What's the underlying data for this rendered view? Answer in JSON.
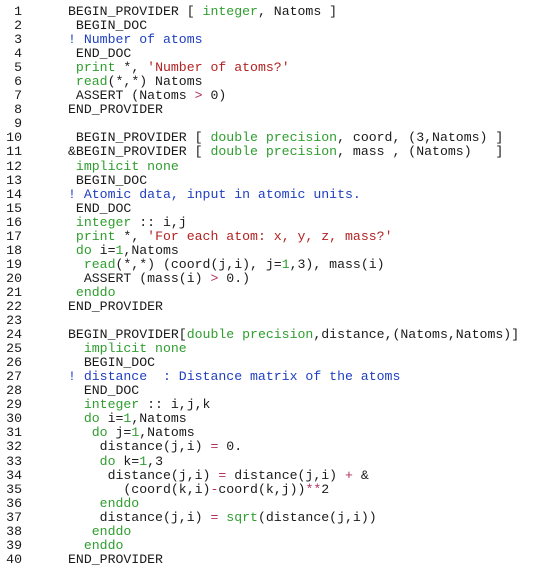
{
  "colors": {
    "keyword": "#2f9e2f",
    "string": "#b22222",
    "comment": "#1f3fbf",
    "operator": "#b03060",
    "text": "#1a1a1a",
    "background": "#ffffff"
  },
  "lines": [
    {
      "n": "1",
      "parts": [
        {
          "t": "BEGIN_PROVIDER [ ",
          "c": ""
        },
        {
          "t": "integer",
          "c": "kw"
        },
        {
          "t": ", Natoms ]",
          "c": ""
        }
      ]
    },
    {
      "n": "2",
      "parts": [
        {
          "t": " BEGIN_DOC",
          "c": ""
        }
      ]
    },
    {
      "n": "3",
      "parts": [
        {
          "t": "! Number of atoms",
          "c": "cmt"
        }
      ]
    },
    {
      "n": "4",
      "parts": [
        {
          "t": " END_DOC",
          "c": ""
        }
      ]
    },
    {
      "n": "5",
      "parts": [
        {
          "t": " ",
          "c": ""
        },
        {
          "t": "print",
          "c": "kw"
        },
        {
          "t": " *, ",
          "c": ""
        },
        {
          "t": "'Number of atoms?'",
          "c": "str"
        }
      ]
    },
    {
      "n": "6",
      "parts": [
        {
          "t": " ",
          "c": ""
        },
        {
          "t": "read",
          "c": "kw"
        },
        {
          "t": "(*,*) Natoms",
          "c": ""
        }
      ]
    },
    {
      "n": "7",
      "parts": [
        {
          "t": " ASSERT (Natoms ",
          "c": ""
        },
        {
          "t": ">",
          "c": "op"
        },
        {
          "t": " 0)",
          "c": ""
        }
      ]
    },
    {
      "n": "8",
      "parts": [
        {
          "t": "END_PROVIDER",
          "c": ""
        }
      ]
    },
    {
      "n": "9",
      "parts": [
        {
          "t": "",
          "c": ""
        }
      ]
    },
    {
      "n": "10",
      "parts": [
        {
          "t": " BEGIN_PROVIDER [ ",
          "c": ""
        },
        {
          "t": "double precision",
          "c": "kw"
        },
        {
          "t": ", coord, (3,Natoms) ]",
          "c": ""
        }
      ]
    },
    {
      "n": "11",
      "parts": [
        {
          "t": "&BEGIN_PROVIDER [ ",
          "c": ""
        },
        {
          "t": "double precision",
          "c": "kw"
        },
        {
          "t": ", mass , (Natoms)   ]",
          "c": ""
        }
      ]
    },
    {
      "n": "12",
      "parts": [
        {
          "t": " ",
          "c": ""
        },
        {
          "t": "implicit none",
          "c": "kw"
        }
      ]
    },
    {
      "n": "13",
      "parts": [
        {
          "t": " BEGIN_DOC",
          "c": ""
        }
      ]
    },
    {
      "n": "14",
      "parts": [
        {
          "t": "! Atomic data, input in atomic units.",
          "c": "cmt"
        }
      ]
    },
    {
      "n": "15",
      "parts": [
        {
          "t": " END_DOC",
          "c": ""
        }
      ]
    },
    {
      "n": "16",
      "parts": [
        {
          "t": " ",
          "c": ""
        },
        {
          "t": "integer",
          "c": "kw"
        },
        {
          "t": " :: i,j",
          "c": ""
        }
      ]
    },
    {
      "n": "17",
      "parts": [
        {
          "t": " ",
          "c": ""
        },
        {
          "t": "print",
          "c": "kw"
        },
        {
          "t": " *, ",
          "c": ""
        },
        {
          "t": "'For each atom: x, y, z, mass?'",
          "c": "str"
        }
      ]
    },
    {
      "n": "18",
      "parts": [
        {
          "t": " ",
          "c": ""
        },
        {
          "t": "do",
          "c": "kw"
        },
        {
          "t": " i=",
          "c": ""
        },
        {
          "t": "1",
          "c": "kw"
        },
        {
          "t": ",Natoms",
          "c": ""
        }
      ]
    },
    {
      "n": "19",
      "parts": [
        {
          "t": "  ",
          "c": ""
        },
        {
          "t": "read",
          "c": "kw"
        },
        {
          "t": "(*,*) (coord(j,i), j=",
          "c": ""
        },
        {
          "t": "1",
          "c": "kw"
        },
        {
          "t": ",3), mass(i)",
          "c": ""
        }
      ]
    },
    {
      "n": "20",
      "parts": [
        {
          "t": "  ASSERT (mass(i) ",
          "c": ""
        },
        {
          "t": ">",
          "c": "op"
        },
        {
          "t": " 0.)",
          "c": ""
        }
      ]
    },
    {
      "n": "21",
      "parts": [
        {
          "t": " ",
          "c": ""
        },
        {
          "t": "enddo",
          "c": "kw"
        }
      ]
    },
    {
      "n": "22",
      "parts": [
        {
          "t": "END_PROVIDER",
          "c": ""
        }
      ]
    },
    {
      "n": "23",
      "parts": [
        {
          "t": "",
          "c": ""
        }
      ]
    },
    {
      "n": "24",
      "parts": [
        {
          "t": "BEGIN_PROVIDER[",
          "c": ""
        },
        {
          "t": "double precision",
          "c": "kw"
        },
        {
          "t": ",distance,(Natoms,Natoms)]",
          "c": ""
        }
      ]
    },
    {
      "n": "25",
      "parts": [
        {
          "t": "  ",
          "c": ""
        },
        {
          "t": "implicit none",
          "c": "kw"
        }
      ]
    },
    {
      "n": "26",
      "parts": [
        {
          "t": "  BEGIN_DOC",
          "c": ""
        }
      ]
    },
    {
      "n": "27",
      "parts": [
        {
          "t": "! distance  : Distance matrix of the atoms",
          "c": "cmt"
        }
      ]
    },
    {
      "n": "28",
      "parts": [
        {
          "t": "  END_DOC",
          "c": ""
        }
      ]
    },
    {
      "n": "29",
      "parts": [
        {
          "t": "  ",
          "c": ""
        },
        {
          "t": "integer",
          "c": "kw"
        },
        {
          "t": " :: i,j,k",
          "c": ""
        }
      ]
    },
    {
      "n": "30",
      "parts": [
        {
          "t": "  ",
          "c": ""
        },
        {
          "t": "do",
          "c": "kw"
        },
        {
          "t": " i=",
          "c": ""
        },
        {
          "t": "1",
          "c": "kw"
        },
        {
          "t": ",Natoms",
          "c": ""
        }
      ]
    },
    {
      "n": "31",
      "parts": [
        {
          "t": "   ",
          "c": ""
        },
        {
          "t": "do",
          "c": "kw"
        },
        {
          "t": " j=",
          "c": ""
        },
        {
          "t": "1",
          "c": "kw"
        },
        {
          "t": ",Natoms",
          "c": ""
        }
      ]
    },
    {
      "n": "32",
      "parts": [
        {
          "t": "    distance(j,i) ",
          "c": ""
        },
        {
          "t": "=",
          "c": "op"
        },
        {
          "t": " 0.",
          "c": ""
        }
      ]
    },
    {
      "n": "33",
      "parts": [
        {
          "t": "    ",
          "c": ""
        },
        {
          "t": "do",
          "c": "kw"
        },
        {
          "t": " k=",
          "c": ""
        },
        {
          "t": "1",
          "c": "kw"
        },
        {
          "t": ",3",
          "c": ""
        }
      ]
    },
    {
      "n": "34",
      "parts": [
        {
          "t": "     distance(j,i) ",
          "c": ""
        },
        {
          "t": "=",
          "c": "op"
        },
        {
          "t": " distance(j,i) ",
          "c": ""
        },
        {
          "t": "+",
          "c": "op"
        },
        {
          "t": " &",
          "c": ""
        }
      ]
    },
    {
      "n": "35",
      "parts": [
        {
          "t": "       (coord(k,i)",
          "c": ""
        },
        {
          "t": "-",
          "c": "op"
        },
        {
          "t": "coord(k,j))",
          "c": ""
        },
        {
          "t": "**",
          "c": "op"
        },
        {
          "t": "2",
          "c": ""
        }
      ]
    },
    {
      "n": "36",
      "parts": [
        {
          "t": "    ",
          "c": ""
        },
        {
          "t": "enddo",
          "c": "kw"
        }
      ]
    },
    {
      "n": "37",
      "parts": [
        {
          "t": "    distance(j,i) ",
          "c": ""
        },
        {
          "t": "=",
          "c": "op"
        },
        {
          "t": " ",
          "c": ""
        },
        {
          "t": "sqrt",
          "c": "kw"
        },
        {
          "t": "(distance(j,i))",
          "c": ""
        }
      ]
    },
    {
      "n": "38",
      "parts": [
        {
          "t": "   ",
          "c": ""
        },
        {
          "t": "enddo",
          "c": "kw"
        }
      ]
    },
    {
      "n": "39",
      "parts": [
        {
          "t": "  ",
          "c": ""
        },
        {
          "t": "enddo",
          "c": "kw"
        }
      ]
    },
    {
      "n": "40",
      "parts": [
        {
          "t": "END_PROVIDER",
          "c": ""
        }
      ]
    }
  ]
}
